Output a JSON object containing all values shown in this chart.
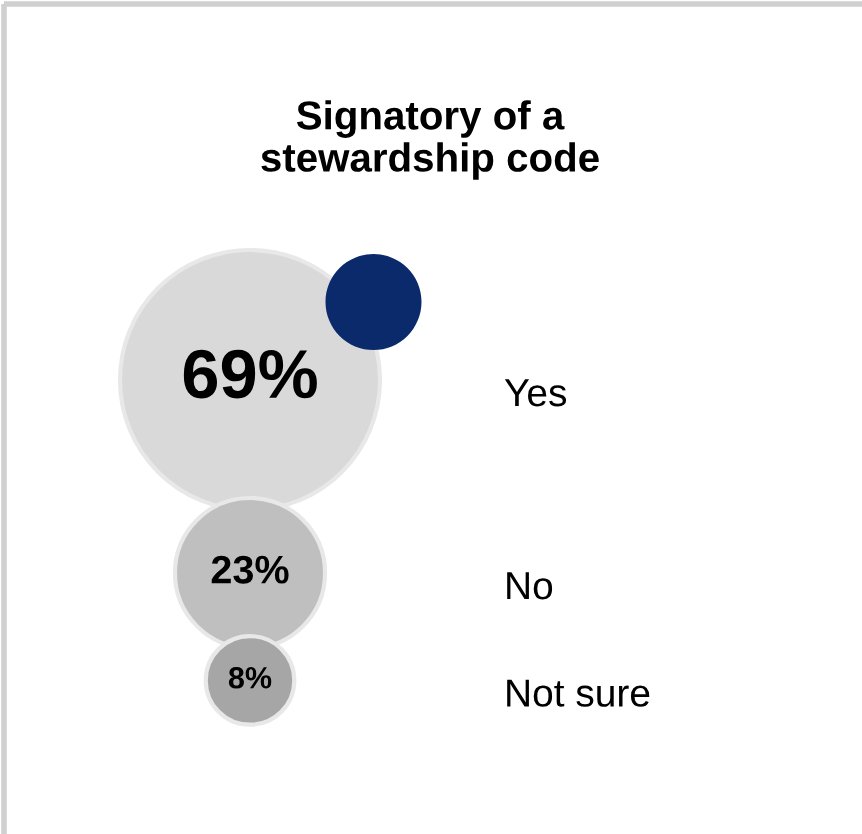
{
  "chart_data": {
    "type": "other",
    "title": "Signatory of a\nstewardship code",
    "categories": [
      "Yes",
      "No",
      "Not sure"
    ],
    "values": [
      69,
      23,
      8
    ],
    "value_labels": [
      "69%",
      "23%",
      "8%"
    ],
    "colors": [
      "#d9d9d9",
      "#bfbfbf",
      "#a6a6a6"
    ]
  }
}
